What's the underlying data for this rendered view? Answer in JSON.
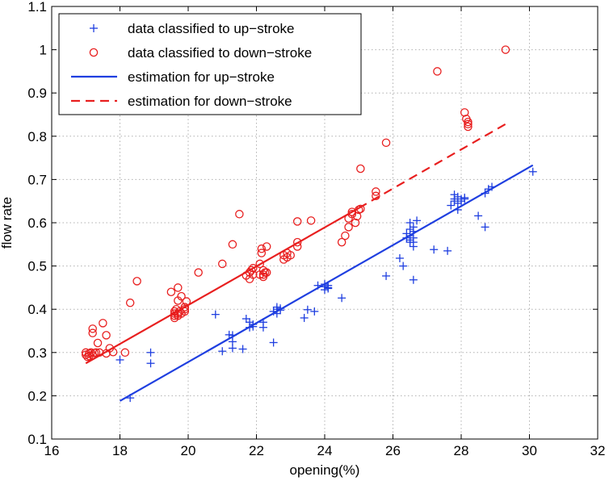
{
  "chart_data": {
    "type": "scatter",
    "title": "",
    "xlabel": "opening(%)",
    "ylabel": "flow rate",
    "xlim": [
      16,
      32
    ],
    "ylim": [
      0.1,
      1.1
    ],
    "xticks": [
      16,
      18,
      20,
      22,
      24,
      26,
      28,
      30,
      32
    ],
    "yticks": [
      0.1,
      0.2,
      0.3,
      0.4,
      0.5,
      0.6,
      0.7,
      0.8,
      0.9,
      1,
      1.1
    ],
    "xtick_labels": [
      "16",
      "18",
      "20",
      "22",
      "24",
      "26",
      "28",
      "30",
      "32"
    ],
    "ytick_labels": [
      "0.1",
      "0.2",
      "0.3",
      "0.4",
      "0.5",
      "0.6",
      "0.7",
      "0.8",
      "0.9",
      "1",
      "1.1"
    ],
    "grid": true,
    "legend_position": "top-left",
    "series": [
      {
        "name": "data classified to up−stroke",
        "kind": "scatter",
        "marker": "plus",
        "color": "#1f3fe0",
        "points": [
          [
            18.0,
            0.283
          ],
          [
            18.3,
            0.195
          ],
          [
            18.9,
            0.3
          ],
          [
            18.9,
            0.275
          ],
          [
            20.8,
            0.388
          ],
          [
            21.0,
            0.303
          ],
          [
            21.2,
            0.341
          ],
          [
            21.3,
            0.325
          ],
          [
            21.3,
            0.31
          ],
          [
            21.3,
            0.34
          ],
          [
            21.6,
            0.308
          ],
          [
            21.7,
            0.378
          ],
          [
            21.8,
            0.37
          ],
          [
            21.8,
            0.358
          ],
          [
            21.9,
            0.365
          ],
          [
            21.9,
            0.36
          ],
          [
            22.2,
            0.37
          ],
          [
            22.2,
            0.358
          ],
          [
            22.5,
            0.323
          ],
          [
            22.5,
            0.395
          ],
          [
            22.6,
            0.4
          ],
          [
            22.6,
            0.405
          ],
          [
            22.6,
            0.39
          ],
          [
            22.7,
            0.402
          ],
          [
            22.7,
            0.398
          ],
          [
            23.4,
            0.38
          ],
          [
            23.5,
            0.399
          ],
          [
            23.7,
            0.395
          ],
          [
            23.8,
            0.455
          ],
          [
            24.0,
            0.445
          ],
          [
            24.0,
            0.452
          ],
          [
            24.0,
            0.458
          ],
          [
            24.1,
            0.448
          ],
          [
            24.1,
            0.455
          ],
          [
            24.1,
            0.45
          ],
          [
            24.5,
            0.426
          ],
          [
            25.8,
            0.477
          ],
          [
            26.2,
            0.518
          ],
          [
            26.3,
            0.5
          ],
          [
            26.4,
            0.565
          ],
          [
            26.4,
            0.575
          ],
          [
            26.5,
            0.585
          ],
          [
            26.5,
            0.6
          ],
          [
            26.5,
            0.56
          ],
          [
            26.5,
            0.555
          ],
          [
            26.5,
            0.57
          ],
          [
            26.6,
            0.59
          ],
          [
            26.6,
            0.545
          ],
          [
            26.6,
            0.468
          ],
          [
            26.6,
            0.58
          ],
          [
            26.6,
            0.565
          ],
          [
            26.6,
            0.555
          ],
          [
            26.7,
            0.605
          ],
          [
            27.2,
            0.538
          ],
          [
            27.6,
            0.535
          ],
          [
            27.7,
            0.64
          ],
          [
            27.8,
            0.655
          ],
          [
            27.8,
            0.665
          ],
          [
            27.8,
            0.65
          ],
          [
            27.9,
            0.645
          ],
          [
            27.9,
            0.66
          ],
          [
            27.9,
            0.63
          ],
          [
            28.0,
            0.655
          ],
          [
            28.0,
            0.65
          ],
          [
            28.1,
            0.658
          ],
          [
            28.1,
            0.655
          ],
          [
            28.5,
            0.616
          ],
          [
            28.7,
            0.59
          ],
          [
            28.7,
            0.668
          ],
          [
            28.8,
            0.678
          ],
          [
            28.9,
            0.683
          ],
          [
            30.1,
            0.718
          ]
        ]
      },
      {
        "name": "data classified to down−stroke",
        "kind": "scatter",
        "marker": "circle",
        "color": "#e81f1f",
        "points": [
          [
            17.0,
            0.295
          ],
          [
            17.0,
            0.3
          ],
          [
            17.05,
            0.29
          ],
          [
            17.1,
            0.298
          ],
          [
            17.1,
            0.292
          ],
          [
            17.15,
            0.3
          ],
          [
            17.2,
            0.293
          ],
          [
            17.2,
            0.345
          ],
          [
            17.2,
            0.355
          ],
          [
            17.25,
            0.299
          ],
          [
            17.3,
            0.3
          ],
          [
            17.35,
            0.322
          ],
          [
            17.4,
            0.3
          ],
          [
            17.5,
            0.368
          ],
          [
            17.6,
            0.298
          ],
          [
            17.6,
            0.34
          ],
          [
            17.7,
            0.31
          ],
          [
            17.8,
            0.301
          ],
          [
            18.15,
            0.3
          ],
          [
            18.3,
            0.415
          ],
          [
            18.5,
            0.465
          ],
          [
            19.5,
            0.44
          ],
          [
            19.6,
            0.38
          ],
          [
            19.6,
            0.385
          ],
          [
            19.6,
            0.39
          ],
          [
            19.6,
            0.395
          ],
          [
            19.65,
            0.4
          ],
          [
            19.7,
            0.385
          ],
          [
            19.7,
            0.39
          ],
          [
            19.7,
            0.42
          ],
          [
            19.7,
            0.45
          ],
          [
            19.75,
            0.395
          ],
          [
            19.8,
            0.43
          ],
          [
            19.8,
            0.39
          ],
          [
            19.9,
            0.395
          ],
          [
            19.9,
            0.405
          ],
          [
            19.9,
            0.4
          ],
          [
            19.95,
            0.418
          ],
          [
            20.3,
            0.485
          ],
          [
            21.0,
            0.505
          ],
          [
            21.3,
            0.55
          ],
          [
            21.5,
            0.62
          ],
          [
            21.7,
            0.478
          ],
          [
            21.8,
            0.47
          ],
          [
            21.8,
            0.485
          ],
          [
            21.85,
            0.49
          ],
          [
            21.9,
            0.48
          ],
          [
            21.9,
            0.495
          ],
          [
            22.1,
            0.48
          ],
          [
            22.1,
            0.505
          ],
          [
            22.15,
            0.53
          ],
          [
            22.15,
            0.54
          ],
          [
            22.2,
            0.48
          ],
          [
            22.2,
            0.49
          ],
          [
            22.2,
            0.475
          ],
          [
            22.25,
            0.485
          ],
          [
            22.3,
            0.485
          ],
          [
            22.3,
            0.545
          ],
          [
            22.8,
            0.515
          ],
          [
            22.8,
            0.525
          ],
          [
            22.9,
            0.52
          ],
          [
            22.9,
            0.53
          ],
          [
            23.0,
            0.525
          ],
          [
            23.2,
            0.545
          ],
          [
            23.2,
            0.555
          ],
          [
            23.2,
            0.603
          ],
          [
            23.6,
            0.605
          ],
          [
            24.5,
            0.555
          ],
          [
            24.6,
            0.57
          ],
          [
            24.7,
            0.59
          ],
          [
            24.7,
            0.61
          ],
          [
            24.8,
            0.62
          ],
          [
            24.8,
            0.625
          ],
          [
            24.9,
            0.6
          ],
          [
            24.95,
            0.615
          ],
          [
            25.0,
            0.63
          ],
          [
            25.05,
            0.725
          ],
          [
            25.05,
            0.632
          ],
          [
            25.5,
            0.662
          ],
          [
            25.5,
            0.672
          ],
          [
            25.8,
            0.785
          ],
          [
            27.3,
            0.95
          ],
          [
            28.1,
            0.855
          ],
          [
            28.15,
            0.84
          ],
          [
            28.2,
            0.822
          ],
          [
            28.2,
            0.828
          ],
          [
            28.2,
            0.833
          ],
          [
            29.3,
            1.0
          ]
        ]
      },
      {
        "name": "estimation for up−stroke",
        "kind": "line",
        "style": "solid",
        "color": "#1f3fe0",
        "points": [
          [
            18.0,
            0.188
          ],
          [
            30.1,
            0.733
          ]
        ]
      },
      {
        "name": "estimation for down−stroke",
        "kind": "line",
        "style": "solid-then-dashed",
        "color": "#e81f1f",
        "dash_from_x": 25.0,
        "points": [
          [
            17.0,
            0.275
          ],
          [
            25.0,
            0.634
          ],
          [
            29.3,
            0.828
          ]
        ]
      }
    ]
  }
}
